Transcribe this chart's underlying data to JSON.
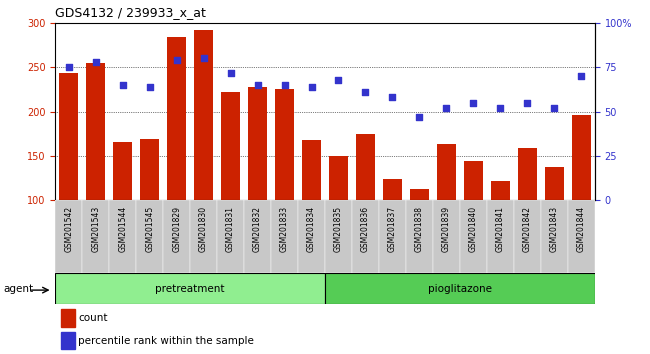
{
  "title": "GDS4132 / 239933_x_at",
  "samples": [
    "GSM201542",
    "GSM201543",
    "GSM201544",
    "GSM201545",
    "GSM201829",
    "GSM201830",
    "GSM201831",
    "GSM201832",
    "GSM201833",
    "GSM201834",
    "GSM201835",
    "GSM201836",
    "GSM201837",
    "GSM201838",
    "GSM201839",
    "GSM201840",
    "GSM201841",
    "GSM201842",
    "GSM201843",
    "GSM201844"
  ],
  "counts": [
    244,
    255,
    165,
    169,
    284,
    292,
    222,
    228,
    225,
    168,
    150,
    175,
    124,
    112,
    163,
    144,
    122,
    159,
    137,
    196
  ],
  "percentiles": [
    75,
    78,
    65,
    64,
    79,
    80,
    72,
    65,
    65,
    64,
    68,
    61,
    58,
    47,
    52,
    55,
    52,
    55,
    52,
    70
  ],
  "pretreatment_count": 10,
  "pioglitazone_count": 10,
  "bar_color": "#cc2200",
  "dot_color": "#3333cc",
  "grid_color": "black",
  "ylim_left": [
    100,
    300
  ],
  "ylim_right": [
    0,
    100
  ],
  "yticks_left": [
    100,
    150,
    200,
    250,
    300
  ],
  "yticks_right": [
    0,
    25,
    50,
    75,
    100
  ],
  "pretreatment_color": "#90EE90",
  "pioglitazone_color": "#55CC55",
  "agent_label": "agent",
  "legend_count": "count",
  "legend_percentile": "percentile rank within the sample",
  "cell_bg": "#c8c8c8"
}
